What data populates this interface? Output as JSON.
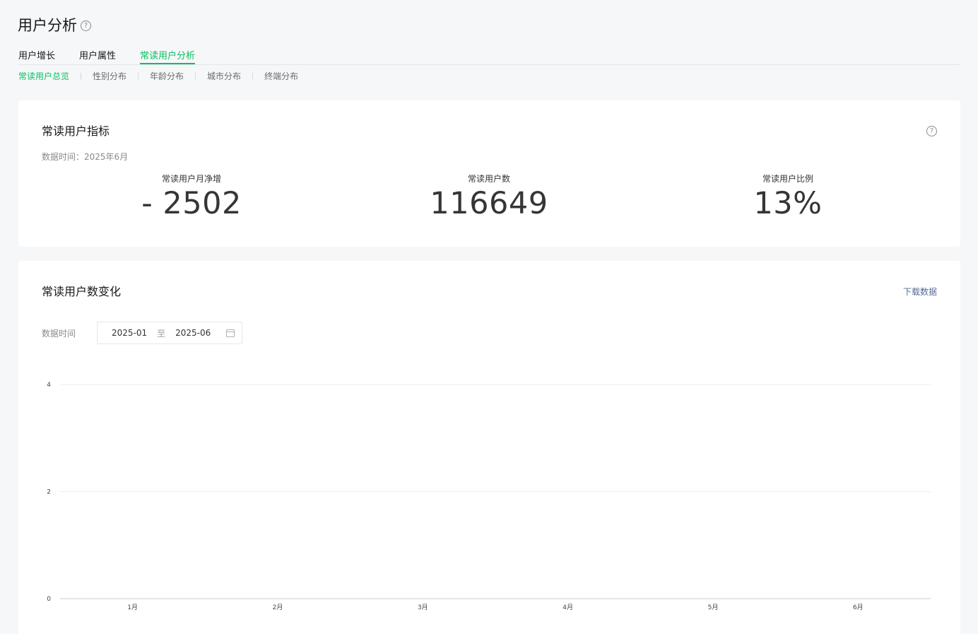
{
  "page": {
    "title": "用户分析",
    "help_glyph": "?"
  },
  "main_tabs": [
    {
      "label": "用户增长",
      "active": false
    },
    {
      "label": "用户属性",
      "active": false
    },
    {
      "label": "常读用户分析",
      "active": true
    }
  ],
  "sub_tabs": [
    {
      "label": "常读用户总览",
      "active": true
    },
    {
      "label": "性别分布",
      "active": false
    },
    {
      "label": "年龄分布",
      "active": false
    },
    {
      "label": "城市分布",
      "active": false
    },
    {
      "label": "终端分布",
      "active": false
    }
  ],
  "metrics_card": {
    "title": "常读用户指标",
    "data_time": "数据时间：2025年6月",
    "metrics": [
      {
        "label": "常读用户月净增",
        "value": "- 2502"
      },
      {
        "label": "常读用户数",
        "value": "116649"
      },
      {
        "label": "常读用户比例",
        "value": "13%"
      }
    ]
  },
  "chart_card": {
    "title": "常读用户数变化",
    "download_label": "下载数据",
    "range_label": "数据时间",
    "range_start": "2025-01",
    "range_sep": "至",
    "range_end": "2025-06"
  },
  "chart_data": {
    "type": "line",
    "categories": [
      "1月",
      "2月",
      "3月",
      "4月",
      "5月",
      "6月"
    ],
    "series": [],
    "yticks": [
      "0",
      "2",
      "4"
    ],
    "ylim": [
      0,
      4
    ],
    "grid": true,
    "axis_color": "#c9cdd4",
    "grid_color": "#eeeeee"
  },
  "colors": {
    "accent": "#07c160",
    "link": "#576b95"
  }
}
